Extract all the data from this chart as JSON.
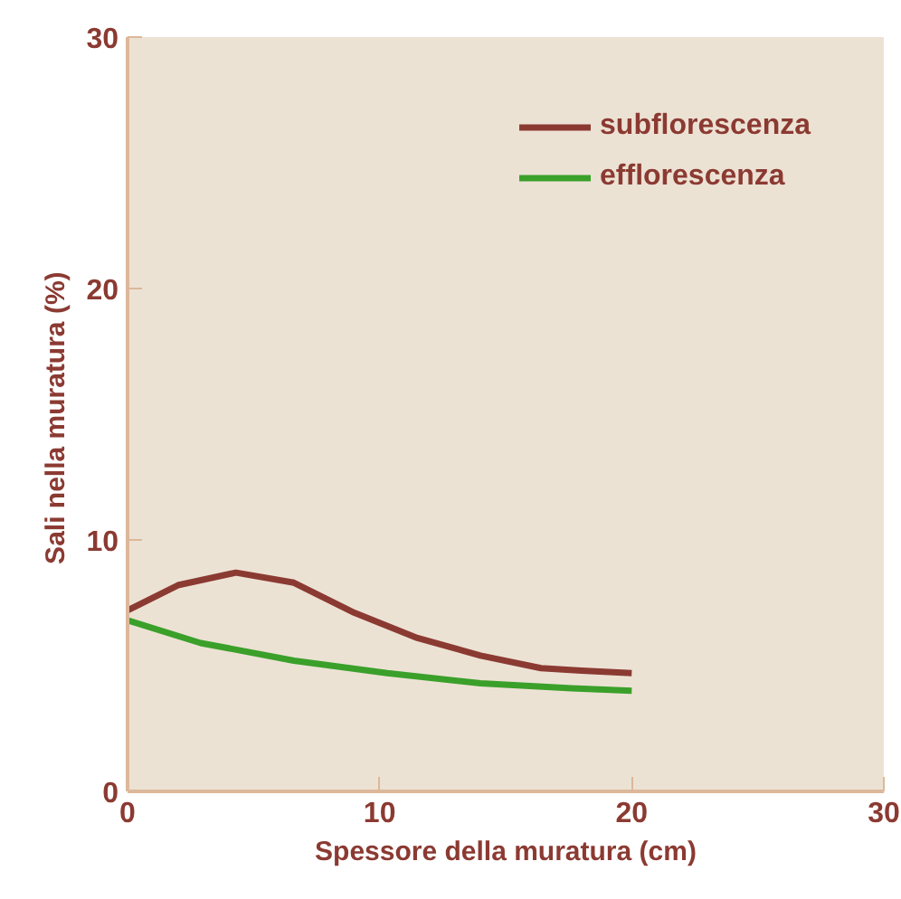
{
  "chart_data": {
    "type": "line",
    "xlabel": "Spessore della muratura (cm)",
    "ylabel": "Sali  nella muratura (%)",
    "xlim": [
      0,
      30
    ],
    "ylim": [
      0,
      30
    ],
    "xticks": [
      0,
      10,
      20,
      30
    ],
    "yticks": [
      0,
      10,
      20,
      30
    ],
    "grid": false,
    "legend": "top right",
    "marker": "none",
    "line_style": "solid",
    "series": [
      {
        "name": "subflorescenza",
        "color": "#8b3a32",
        "x": [
          0,
          2,
          4.3,
          6.6,
          9,
          11.5,
          14,
          16.4,
          18,
          20
        ],
        "values": [
          7.2,
          8.2,
          8.7,
          8.3,
          7.1,
          6.1,
          5.4,
          4.9,
          4.8,
          4.7
        ]
      },
      {
        "name": "efflorescenza",
        "color": "#3aa02a",
        "x": [
          0,
          2.9,
          6.6,
          10.3,
          14,
          17.6,
          20
        ],
        "values": [
          6.8,
          5.9,
          5.2,
          4.7,
          4.3,
          4.1,
          4.0
        ]
      }
    ]
  }
}
